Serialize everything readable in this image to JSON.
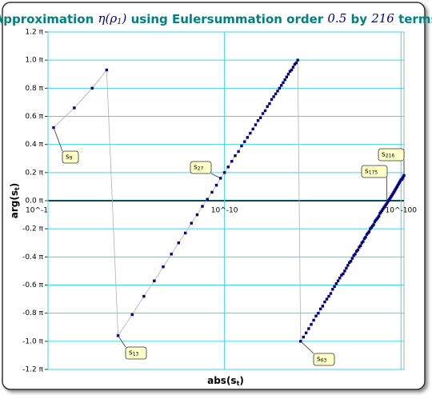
{
  "chart_data": {
    "type": "scatter",
    "title": [
      "Approximation ",
      "η(ρ",
      "1",
      ")",
      " using Eulersummation order ",
      "0.5",
      " by ",
      "216",
      " terms"
    ],
    "xlabel": [
      "abs(s",
      "t",
      ")"
    ],
    "ylabel": [
      "arg(s",
      "t",
      ")"
    ],
    "xscale": "loglog",
    "xlim": [
      0.1,
      1e-104
    ],
    "xticks": [
      {
        "value": 0.1,
        "label": "10^-1"
      },
      {
        "value": 1e-10,
        "label": "10^-10"
      },
      {
        "value": 1e-100,
        "label": "10^-100"
      }
    ],
    "ylim": [
      -1.2,
      1.2
    ],
    "yticks": [
      {
        "value": -1.2,
        "label": "-1.2 π"
      },
      {
        "value": -1.0,
        "label": "-1.0 π"
      },
      {
        "value": -0.8,
        "label": "-0.8 π"
      },
      {
        "value": -0.6,
        "label": "-0.6 π"
      },
      {
        "value": -0.4,
        "label": "-0.4 π"
      },
      {
        "value": -0.2,
        "label": "-0.2 π"
      },
      {
        "value": 0.0,
        "label": "0.0 π"
      },
      {
        "value": 0.2,
        "label": "0.2 π"
      },
      {
        "value": 0.4,
        "label": "0.4 π"
      },
      {
        "value": 0.6,
        "label": "0.6 π"
      },
      {
        "value": 0.8,
        "label": "0.8 π"
      },
      {
        "value": 1.0,
        "label": "1.0 π"
      },
      {
        "value": 1.2,
        "label": "1.2 π"
      }
    ],
    "grid": true,
    "color": "#000080",
    "line_color": "#b0b0b0",
    "x": [
      0.084,
      0.039,
      0.0166,
      0.0071,
      0.0032,
      0.001,
      0.00032,
      0.0001,
      3.2e-05,
      1e-05,
      3.2e-06,
      1e-06,
      3.2e-07,
      1e-07,
      3.2e-08,
      1e-08,
      3.2e-09,
      1e-09,
      3.2e-10,
      1e-10,
      3.2e-11,
      1e-11,
      3.2e-12,
      1e-12,
      3.2e-13,
      1e-13,
      3.2e-14,
      1e-14,
      3.2e-15,
      1e-15,
      3.2e-16,
      1e-16,
      3.2e-17,
      1e-17,
      3.2e-18,
      1e-18,
      3.2e-19,
      1e-19,
      3.2e-20,
      1e-20,
      3.2e-21,
      1e-21,
      3.2e-22,
      1e-22,
      3.2e-23,
      1e-23,
      3.2e-24,
      1e-24,
      3.2e-25,
      1e-25,
      3.2e-26,
      1e-26,
      1e-27,
      1e-28,
      1e-29,
      1e-30,
      1e-31,
      1e-32,
      1e-33,
      1e-34,
      1e-35,
      1e-36,
      1e-37,
      1e-38,
      1e-39,
      1e-40,
      1e-41,
      1e-42,
      1e-43,
      1e-44,
      1e-45,
      1e-46,
      1e-47,
      1e-48,
      1e-49,
      1e-50,
      1e-51,
      1e-52,
      1e-53,
      1e-54,
      1e-55,
      1e-56,
      1e-57,
      1e-58,
      1e-59,
      1e-60,
      1e-61,
      1e-62,
      1e-63,
      1e-64,
      1e-65,
      1e-66,
      1e-67,
      1e-68,
      1e-69,
      1e-70,
      1e-71,
      1e-72,
      1e-73,
      1e-74,
      1e-75,
      1e-76,
      1e-77,
      1e-78,
      1e-79,
      1e-80,
      1e-81,
      1e-82,
      1e-83,
      1e-84,
      1e-85,
      1e-86,
      1e-87,
      1e-88,
      1e-89,
      1e-90,
      1e-91,
      1e-92,
      1e-93,
      1e-94,
      1e-95,
      1e-96,
      1e-97,
      1e-98,
      1e-99,
      1e-100,
      1e-101,
      1e-102,
      1e-103,
      1e-104
    ],
    "values": [
      0.52,
      0.66,
      0.8,
      0.93,
      -0.96,
      -0.81,
      -0.68,
      -0.57,
      -0.47,
      -0.38,
      -0.3,
      -0.23,
      -0.16,
      -0.1,
      -0.04,
      0.01,
      0.06,
      0.11,
      0.16,
      0.2,
      0.24,
      0.28,
      0.32,
      0.35,
      0.39,
      0.42,
      0.45,
      0.48,
      0.51,
      0.54,
      0.57,
      0.59,
      0.62,
      0.64,
      0.67,
      0.69,
      0.72,
      0.74,
      0.76,
      0.78,
      0.8,
      0.82,
      0.84,
      0.86,
      0.88,
      0.9,
      0.92,
      0.93,
      0.95,
      0.97,
      0.98,
      1.0,
      -1.0,
      -0.97,
      -0.94,
      -0.91,
      -0.88,
      -0.85,
      -0.82,
      -0.8,
      -0.77,
      -0.75,
      -0.72,
      -0.7,
      -0.68,
      -0.66,
      -0.63,
      -0.61,
      -0.59,
      -0.57,
      -0.55,
      -0.53,
      -0.52,
      -0.5,
      -0.48,
      -0.46,
      -0.44,
      -0.43,
      -0.41,
      -0.39,
      -0.38,
      -0.36,
      -0.35,
      -0.33,
      -0.32,
      -0.3,
      -0.29,
      -0.27,
      -0.26,
      -0.24,
      -0.23,
      -0.22,
      -0.2,
      -0.19,
      -0.18,
      -0.17,
      -0.15,
      -0.14,
      -0.13,
      -0.12,
      -0.11,
      -0.09,
      -0.08,
      -0.07,
      -0.06,
      -0.05,
      -0.04,
      -0.03,
      -0.02,
      -0.01,
      0,
      0.01,
      0.02,
      0.03,
      0.04,
      0.05,
      0.06,
      0.07,
      0.08,
      0.09,
      0.1,
      0.11,
      0.12,
      0.13,
      0.14,
      0.15,
      0.15,
      0.16,
      0.17,
      0.18
    ],
    "callouts": [
      {
        "text": "s",
        "sub": "9"
      },
      {
        "text": "s",
        "sub": "13"
      },
      {
        "text": "s",
        "sub": "27"
      },
      {
        "text": "s",
        "sub": "63"
      },
      {
        "text": "s",
        "sub": "175"
      },
      {
        "text": "s",
        "sub": "216"
      }
    ]
  }
}
